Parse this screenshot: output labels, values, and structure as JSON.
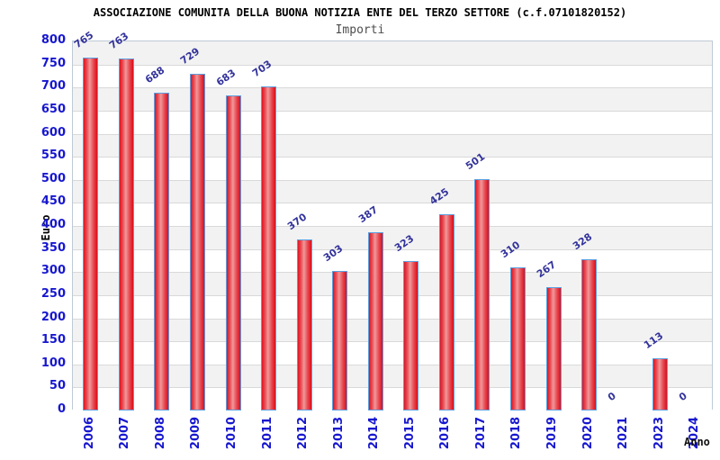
{
  "header": {
    "title": "ASSOCIAZIONE COMUNITA DELLA BUONA NOTIZIA ENTE DEL TERZO SETTORE (c.f.07101820152)",
    "subtitle": "Importi"
  },
  "chart_data": {
    "type": "bar",
    "title": "ASSOCIAZIONE COMUNITA DELLA BUONA NOTIZIA ENTE DEL TERZO SETTORE (c.f.07101820152)",
    "subtitle": "Importi",
    "xlabel": "Anno",
    "ylabel": "Euro",
    "categories": [
      "2006",
      "2007",
      "2008",
      "2009",
      "2010",
      "2011",
      "2012",
      "2013",
      "2014",
      "2015",
      "2016",
      "2017",
      "2018",
      "2019",
      "2020",
      "2021",
      "2023",
      "2024"
    ],
    "values": [
      765,
      763,
      688,
      729,
      683,
      703,
      370,
      303,
      387,
      323,
      425,
      501,
      310,
      267,
      328,
      0,
      113,
      0
    ],
    "ylim": [
      0,
      800
    ],
    "ytick_step": 50,
    "grid": true,
    "legend": "none",
    "colors": {
      "bar_edge_red": "#df1420",
      "bar_center_highlight": "#f0989a",
      "bar_border_blue": "#5b9fe0",
      "axis_text_blue": "#1717cf",
      "value_label_navy": "#32329b",
      "band_gray": "#f2f2f2",
      "gridline_gray": "#d9d9d9",
      "plot_border": "#bfcad6",
      "subtitle_gray": "#4d4d4d"
    }
  }
}
